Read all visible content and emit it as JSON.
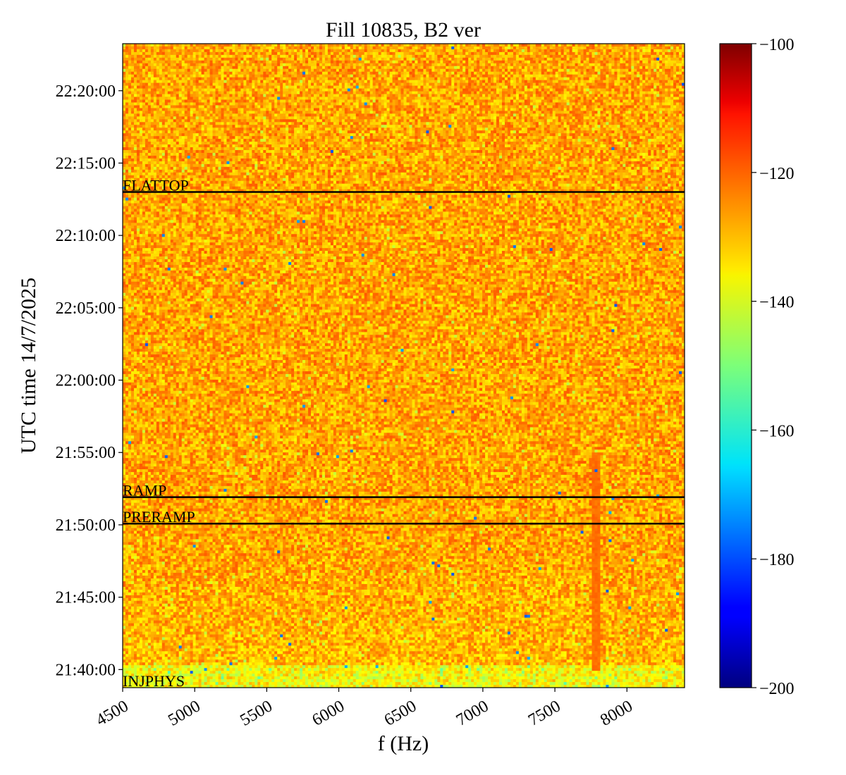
{
  "chart_data": {
    "type": "heatmap",
    "title": "Fill 10835, B2 ver",
    "xlabel": "f (Hz)",
    "ylabel": "UTC time 14/7/2025",
    "xlim": [
      4500,
      8400
    ],
    "ylim": [
      "21:38:45",
      "22:23:15"
    ],
    "x_ticks": [
      4500,
      5000,
      5500,
      6000,
      6500,
      7000,
      7500,
      8000
    ],
    "x_tick_labels": [
      "4500",
      "5000",
      "5500",
      "6000",
      "6500",
      "7000",
      "7500",
      "8000"
    ],
    "y_ticks": [
      "21:40:00",
      "21:45:00",
      "21:50:00",
      "21:55:00",
      "22:00:00",
      "22:05:00",
      "22:10:00",
      "22:15:00",
      "22:20:00"
    ],
    "y_tick_labels": [
      "21:40:00",
      "21:45:00",
      "21:50:00",
      "21:55:00",
      "22:00:00",
      "22:05:00",
      "22:10:00",
      "22:15:00",
      "22:20:00"
    ],
    "colorbar": {
      "colormap": "jet",
      "range": [
        -200,
        -100
      ],
      "ticks": [
        -100,
        -120,
        -140,
        -160,
        -180,
        -200
      ],
      "tick_labels": [
        "−100",
        "−120",
        "−140",
        "−160",
        "−180",
        "−200"
      ]
    },
    "dominant_value_range": [
      -135,
      -122
    ],
    "features": [
      {
        "description": "narrow elevated band",
        "frequency": 7780,
        "time_range": [
          "21:40:00",
          "21:55:00"
        ],
        "value": -122
      }
    ],
    "annotations": [
      {
        "label": "INJPHYS",
        "time": "21:38:45"
      },
      {
        "label": "PRERAMP",
        "time": "21:50:05"
      },
      {
        "label": "RAMP",
        "time": "21:51:55"
      },
      {
        "label": "FLATTOP",
        "time": "22:13:00"
      }
    ],
    "grid": false
  }
}
